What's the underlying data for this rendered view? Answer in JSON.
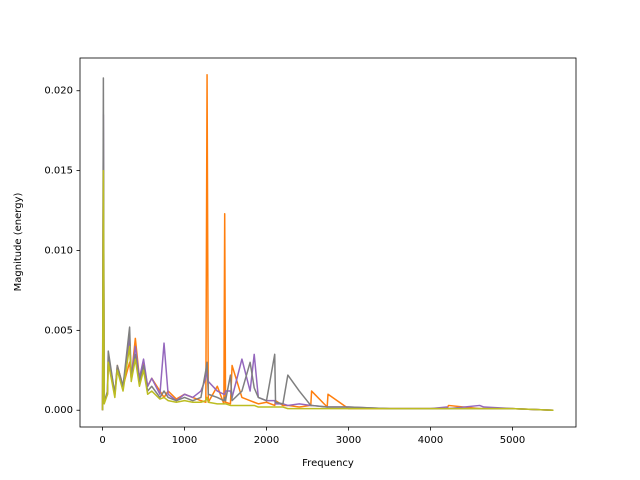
{
  "chart_data": {
    "type": "line",
    "xlabel": "Frequency",
    "ylabel": "Magnitude (energy)",
    "x": [
      0,
      10,
      20,
      60,
      70,
      150,
      180,
      250,
      330,
      350,
      400,
      450,
      500,
      550,
      600,
      700,
      750,
      800,
      900,
      1000,
      1100,
      1200,
      1260,
      1275,
      1290,
      1400,
      1480,
      1490,
      1500,
      1560,
      1580,
      1700,
      1800,
      1850,
      1900,
      2000,
      2100,
      2110,
      2200,
      2260,
      2400,
      2540,
      2550,
      2740,
      2750,
      3000,
      3500,
      4000,
      4200,
      4220,
      4600,
      4650,
      5000,
      5500
    ],
    "series": [
      {
        "color": "#ff7f0e",
        "values": [
          0,
          0.015,
          0.0005,
          0.001,
          0.003,
          0.001,
          0.0028,
          0.0015,
          0.003,
          0.002,
          0.0045,
          0.002,
          0.003,
          0.0015,
          0.002,
          0.0012,
          0.0008,
          0.0012,
          0.0007,
          0.001,
          0.0008,
          0.0006,
          0.0005,
          0.021,
          0.0005,
          0.0015,
          0.0004,
          0.0123,
          0.0005,
          0.0004,
          0.0028,
          0.0008,
          0.0006,
          0.0005,
          0.0004,
          0.0005,
          0.0003,
          0.0006,
          0.0003,
          0.0003,
          0.0002,
          0.0003,
          0.0012,
          0.0002,
          0.001,
          0.0001,
          0.0001,
          0.0001,
          0.0001,
          0.0003,
          0.0001,
          0.0001,
          0.0001,
          0
        ]
      },
      {
        "color": "#9467bd",
        "values": [
          0,
          0.0185,
          0.0005,
          0.001,
          0.0035,
          0.001,
          0.0025,
          0.0015,
          0.0045,
          0.002,
          0.004,
          0.002,
          0.0032,
          0.0015,
          0.002,
          0.001,
          0.0042,
          0.001,
          0.0006,
          0.001,
          0.0008,
          0.0012,
          0.002,
          0.0025,
          0.0018,
          0.0012,
          0.001,
          0.001,
          0.0012,
          0.0012,
          0.0008,
          0.0032,
          0.0012,
          0.0035,
          0.0008,
          0.0006,
          0.0006,
          0.0004,
          0.0004,
          0.0003,
          0.0004,
          0.0003,
          0.0003,
          0.0002,
          0.0002,
          0.0002,
          0.0001,
          0.0001,
          0.0002,
          0.0001,
          0.0003,
          0.0002,
          0.0001,
          0
        ]
      },
      {
        "color": "#7f7f7f",
        "values": [
          0,
          0.0208,
          0.0005,
          0.0012,
          0.0037,
          0.001,
          0.0028,
          0.0015,
          0.0052,
          0.002,
          0.0035,
          0.0018,
          0.0028,
          0.0012,
          0.0015,
          0.0008,
          0.0012,
          0.0008,
          0.0006,
          0.0008,
          0.0006,
          0.0008,
          0.0025,
          0.003,
          0.001,
          0.0008,
          0.0006,
          0.0008,
          0.0006,
          0.0022,
          0.0006,
          0.0012,
          0.003,
          0.0014,
          0.0008,
          0.0006,
          0.0035,
          0.0005,
          0.0004,
          0.0022,
          0.0012,
          0.0003,
          0.0003,
          0.0002,
          0.0002,
          0.0002,
          0.0001,
          0.0001,
          0.0001,
          0.0001,
          0.0001,
          0.0001,
          0.0001,
          0
        ]
      },
      {
        "color": "#bcbd22",
        "values": [
          0,
          0.015,
          0.0004,
          0.001,
          0.003,
          0.0008,
          0.0025,
          0.0012,
          0.004,
          0.0018,
          0.0032,
          0.0015,
          0.0025,
          0.001,
          0.0012,
          0.0007,
          0.0008,
          0.0006,
          0.0005,
          0.0006,
          0.0005,
          0.0005,
          0.0006,
          0.0008,
          0.0005,
          0.0004,
          0.0004,
          0.0004,
          0.0004,
          0.0003,
          0.0003,
          0.0003,
          0.0003,
          0.0003,
          0.0002,
          0.0002,
          0.0002,
          0.0002,
          0.0002,
          0.0001,
          0.0001,
          0.0001,
          0.0001,
          0.0001,
          0.0001,
          0.0001,
          0.0001,
          0.0001,
          0.0001,
          0.0001,
          0.0001,
          0.0001,
          0.0001,
          0
        ]
      }
    ],
    "xlim": [
      -275,
      5775
    ],
    "xticks": [
      0,
      1000,
      2000,
      3000,
      4000,
      5000
    ],
    "ylim": [
      -0.00105,
      0.02205
    ],
    "yticks": [
      {
        "value": 0,
        "label": "0.000"
      },
      0.005,
      {
        "value": 0.01,
        "label": "0.010"
      },
      0.015,
      {
        "value": 0.02,
        "label": "0.020"
      }
    ],
    "grid": false
  }
}
